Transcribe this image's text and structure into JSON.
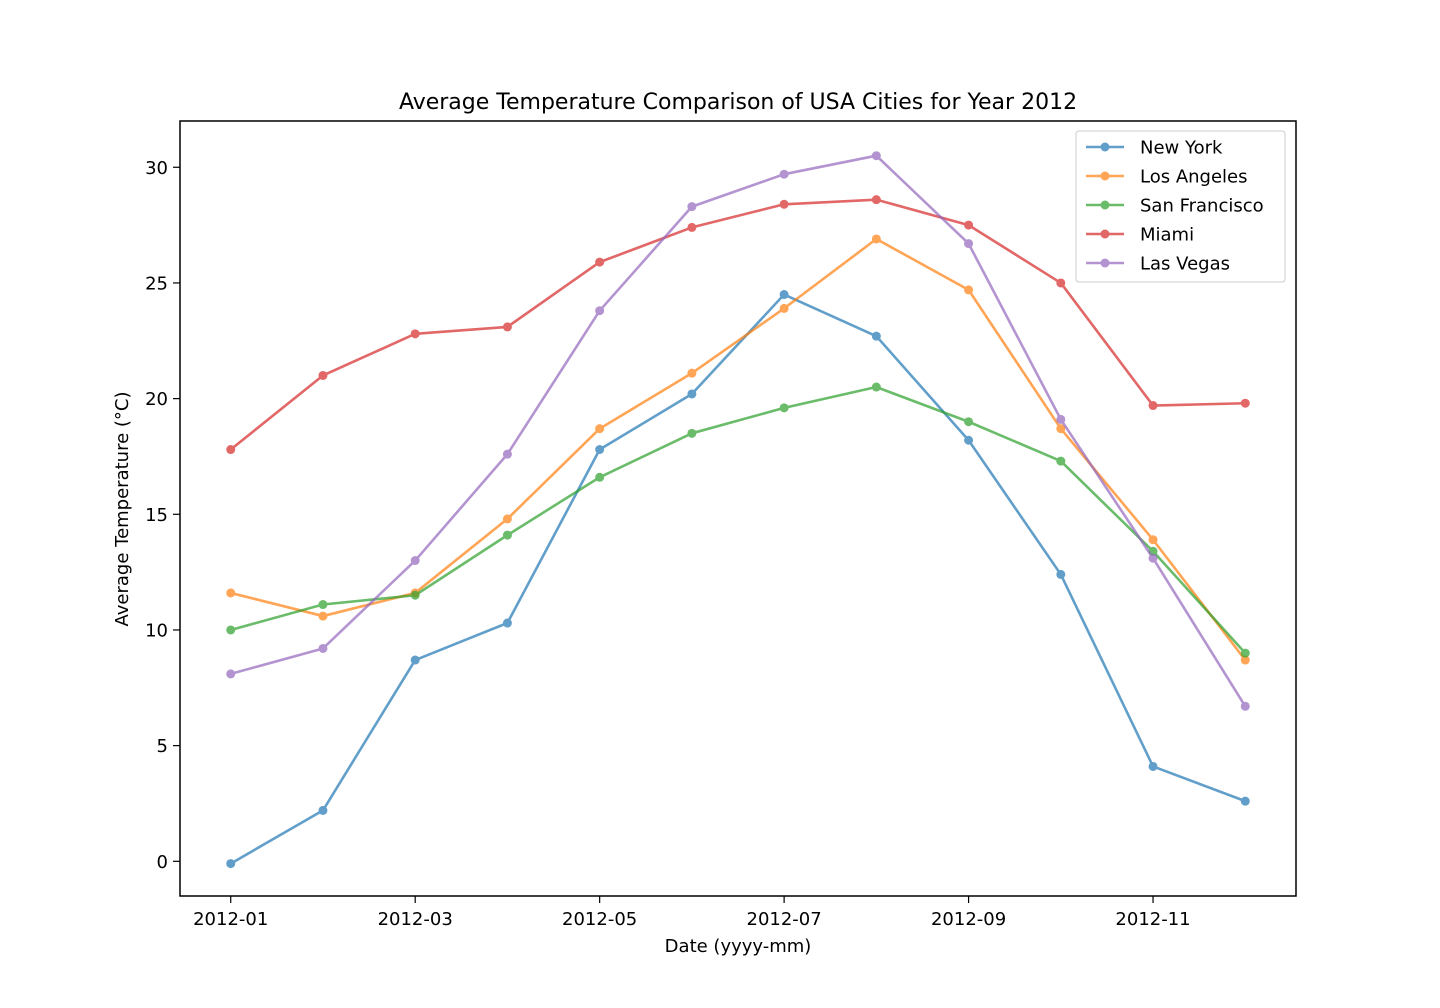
{
  "chart_data": {
    "type": "line",
    "title": "Average Temperature Comparison of USA Cities for Year 2012",
    "xlabel": "Date (yyyy-mm)",
    "ylabel": "Average Temperature (°C)",
    "x": [
      "2012-01",
      "2012-02",
      "2012-03",
      "2012-04",
      "2012-05",
      "2012-06",
      "2012-07",
      "2012-08",
      "2012-09",
      "2012-10",
      "2012-11",
      "2012-12"
    ],
    "xticks": [
      "2012-01",
      "2012-03",
      "2012-05",
      "2012-07",
      "2012-09",
      "2012-11"
    ],
    "yticks": [
      0,
      5,
      10,
      15,
      20,
      25,
      30
    ],
    "ylim": [
      -1.5,
      32
    ],
    "grid": false,
    "legend_position": "upper right",
    "series": [
      {
        "name": "New York",
        "color": "#1f77b4",
        "values": [
          -0.1,
          2.2,
          8.7,
          10.3,
          17.8,
          20.2,
          24.5,
          22.7,
          18.2,
          12.4,
          4.1,
          2.6
        ]
      },
      {
        "name": "Los Angeles",
        "color": "#ff7f0e",
        "values": [
          11.6,
          10.6,
          11.6,
          14.8,
          18.7,
          21.1,
          23.9,
          26.9,
          24.7,
          18.7,
          13.9,
          8.7
        ]
      },
      {
        "name": "San Francisco",
        "color": "#2ca02c",
        "values": [
          10.0,
          11.1,
          11.5,
          14.1,
          16.6,
          18.5,
          19.6,
          20.5,
          19.0,
          17.3,
          13.4,
          9.0
        ]
      },
      {
        "name": "Miami",
        "color": "#d62728",
        "values": [
          17.8,
          21.0,
          22.8,
          23.1,
          25.9,
          27.4,
          28.4,
          28.6,
          27.5,
          25.0,
          19.7,
          19.8
        ]
      },
      {
        "name": "Las Vegas",
        "color": "#9467bd",
        "values": [
          8.1,
          9.2,
          13.0,
          17.6,
          23.8,
          28.3,
          29.7,
          30.5,
          26.7,
          19.1,
          13.1,
          6.7
        ]
      }
    ]
  }
}
